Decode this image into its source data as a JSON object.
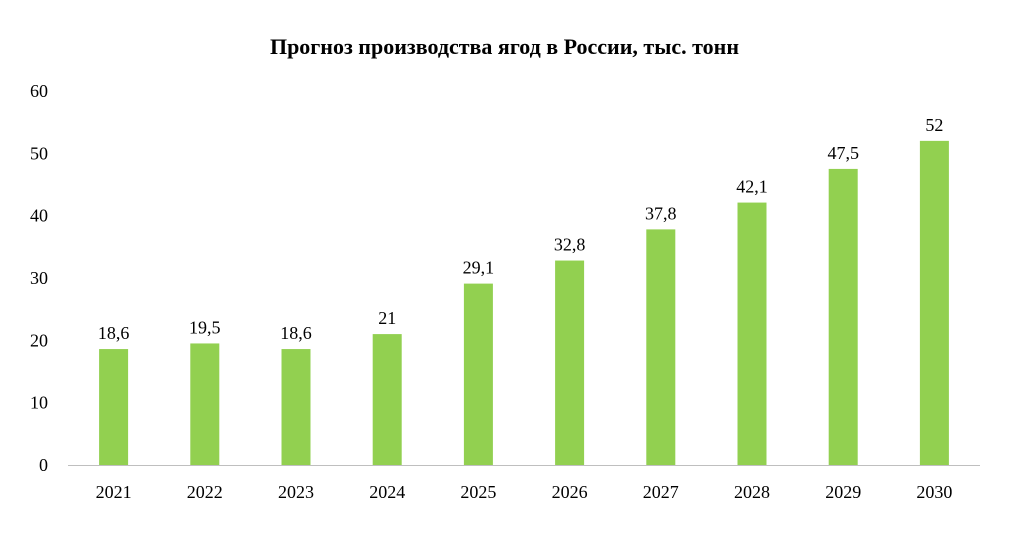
{
  "chart_data": {
    "type": "bar",
    "title": "Прогноз производства ягод в России, тыс. тонн",
    "categories": [
      "2021",
      "2022",
      "2023",
      "2024",
      "2025",
      "2026",
      "2027",
      "2028",
      "2029",
      "2030"
    ],
    "values": [
      18.6,
      19.5,
      18.6,
      21,
      29.1,
      32.8,
      37.8,
      42.1,
      47.5,
      52
    ],
    "data_labels": [
      "18,6",
      "19,5",
      "18,6",
      "21",
      "29,1",
      "32,8",
      "37,8",
      "42,1",
      "47,5",
      "52"
    ],
    "ylim": [
      0,
      60
    ],
    "yticks": [
      0,
      10,
      20,
      30,
      40,
      50,
      60
    ],
    "xlabel": "",
    "ylabel": "",
    "grid": false,
    "legend": "none",
    "bar_color": "#92D050",
    "axis_color": "#BFBFBF"
  }
}
